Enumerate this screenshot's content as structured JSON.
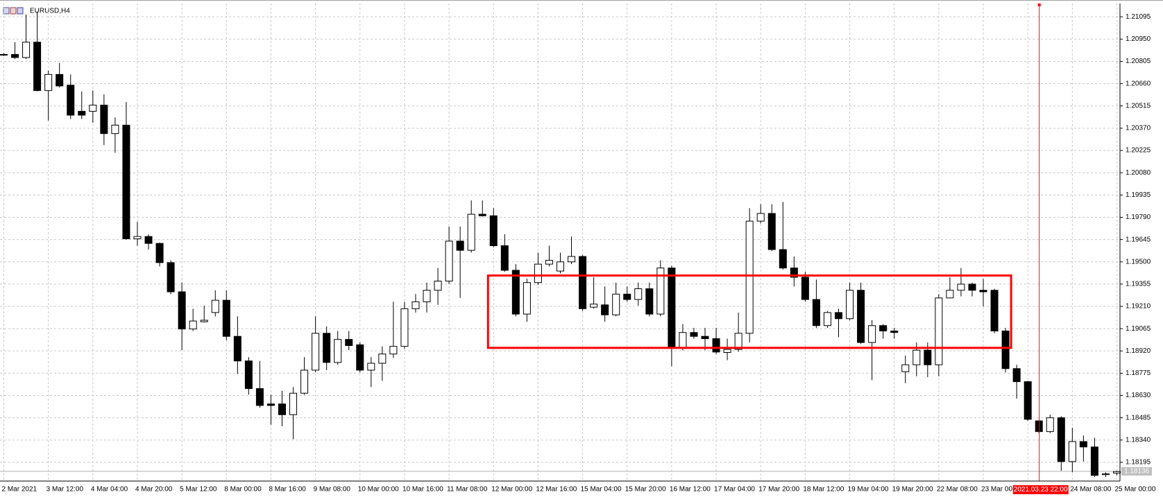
{
  "chart_data": {
    "type": "candlestick",
    "title": "EURUSD,H4",
    "categories": [
      "2 Mar 2021",
      null,
      null,
      null,
      "3 Mar 12:00",
      null,
      null,
      null,
      "4 Mar 04:00",
      null,
      null,
      null,
      "4 Mar 20:00",
      null,
      null,
      null,
      "5 Mar 12:00",
      null,
      null,
      null,
      "8 Mar 00:00",
      null,
      null,
      null,
      "8 Mar 16:00",
      null,
      null,
      null,
      "9 Mar 08:00",
      null,
      null,
      null,
      "10 Mar 00:00",
      null,
      null,
      null,
      "10 Mar 16:00",
      null,
      null,
      null,
      "11 Mar 08:00",
      null,
      null,
      null,
      "12 Mar 00:00",
      null,
      null,
      null,
      "12 Mar 16:00",
      null,
      null,
      null,
      "15 Mar 04:00",
      null,
      null,
      null,
      "15 Mar 20:00",
      null,
      null,
      null,
      "16 Mar 12:00",
      null,
      null,
      null,
      "17 Mar 04:00",
      null,
      null,
      null,
      "17 Mar 20:00",
      null,
      null,
      null,
      "18 Mar 12:00",
      null,
      null,
      null,
      "19 Mar 04:00",
      null,
      null,
      null,
      "19 Mar 20:00",
      null,
      null,
      null,
      "22 Mar 08:00",
      null,
      null,
      null,
      "23 Mar 00:00",
      null,
      null,
      null,
      null,
      null,
      null,
      null,
      "24 Mar 08:00",
      null,
      null,
      null,
      "25 Mar 00:00"
    ],
    "open": [
      1.2085,
      1.2085,
      1.2083,
      1.2093,
      1.20615,
      1.2072,
      1.2065,
      1.2048,
      1.2048,
      1.2052,
      1.20335,
      1.2039,
      1.1965,
      1.19665,
      1.1962,
      1.19495,
      1.19305,
      1.19063,
      1.1911,
      1.1917,
      1.1925,
      1.19015,
      1.18855,
      1.18675,
      1.18575,
      1.18575,
      1.18505,
      1.18645,
      1.18795,
      1.19035,
      1.18845,
      1.18995,
      1.1896,
      1.18795,
      1.1884,
      1.189,
      1.1895,
      1.19195,
      1.1924,
      1.19315,
      1.19375,
      1.19635,
      1.19575,
      1.1981,
      1.198,
      1.19605,
      1.19445,
      1.1916,
      1.19365,
      1.19485,
      1.1944,
      1.195,
      1.19535,
      1.19205,
      1.1922,
      1.19155,
      1.1929,
      1.19255,
      1.19325,
      1.1916,
      1.1946,
      1.1894,
      1.1904,
      1.19015,
      1.19,
      1.1891,
      1.1893,
      1.19035,
      1.19765,
      1.19815,
      1.1958,
      1.1946,
      1.194,
      1.19255,
      1.19085,
      1.1917,
      1.1913,
      1.19315,
      1.18975,
      1.19085,
      1.1905,
      1.18785,
      1.1883,
      1.18925,
      1.1883,
      1.19265,
      1.19315,
      1.19355,
      1.19315,
      1.19315,
      1.1905,
      1.18805,
      1.1872,
      1.18465,
      1.18395,
      1.18485,
      1.182,
      1.1833,
      1.18295,
      1.18115,
      1.18125
    ],
    "high": [
      1.2086,
      1.2093,
      1.2111,
      1.2113,
      1.20745,
      1.20795,
      1.2072,
      1.2061,
      1.20615,
      1.2059,
      1.2044,
      1.2054,
      1.1976,
      1.1968,
      1.19625,
      1.1951,
      1.19365,
      1.19195,
      1.19215,
      1.19315,
      1.19315,
      1.19145,
      1.1888,
      1.18855,
      1.18635,
      1.1866,
      1.18685,
      1.1888,
      1.19145,
      1.1908,
      1.1905,
      1.1905,
      1.18975,
      1.1888,
      1.1895,
      1.1924,
      1.1924,
      1.1929,
      1.19365,
      1.1946,
      1.1973,
      1.1973,
      1.199,
      1.199,
      1.1985,
      1.1968,
      1.19485,
      1.1939,
      1.1956,
      1.19605,
      1.1956,
      1.19665,
      1.19545,
      1.194,
      1.1934,
      1.19365,
      1.1934,
      1.19365,
      1.19365,
      1.1951,
      1.19475,
      1.19095,
      1.1907,
      1.1907,
      1.1907,
      1.19,
      1.1917,
      1.1985,
      1.19875,
      1.19875,
      1.1989,
      1.19535,
      1.19435,
      1.19385,
      1.1918,
      1.19195,
      1.19365,
      1.19365,
      1.1912,
      1.19095,
      1.1907,
      1.1889,
      1.18975,
      1.18975,
      1.1929,
      1.194,
      1.1946,
      1.19365,
      1.1939,
      1.19325,
      1.1907,
      1.1883,
      1.18725,
      1.18465,
      1.18505,
      1.18495,
      1.1842,
      1.1837,
      1.18355,
      1.1813,
      1.1814
    ],
    "low": [
      1.2084,
      1.2082,
      1.2082,
      1.2061,
      1.2042,
      1.20635,
      1.2043,
      1.2043,
      1.20405,
      1.2026,
      1.2021,
      1.19645,
      1.19605,
      1.1958,
      1.1947,
      1.1929,
      1.18925,
      1.1905,
      1.19105,
      1.19145,
      1.1899,
      1.1877,
      1.18635,
      1.1855,
      1.1844,
      1.1843,
      1.18345,
      1.18635,
      1.1878,
      1.18795,
      1.1883,
      1.18925,
      1.1878,
      1.18685,
      1.18725,
      1.18875,
      1.18935,
      1.1917,
      1.1917,
      1.1922,
      1.19355,
      1.19265,
      1.1956,
      1.19795,
      1.19595,
      1.19435,
      1.19145,
      1.1911,
      1.1935,
      1.1947,
      1.19425,
      1.19485,
      1.1918,
      1.19195,
      1.1911,
      1.19145,
      1.1924,
      1.19215,
      1.19145,
      1.19145,
      1.1882,
      1.18925,
      1.19,
      1.18925,
      1.189,
      1.1886,
      1.18915,
      1.18975,
      1.1975,
      1.1957,
      1.1945,
      1.1934,
      1.1924,
      1.1907,
      1.1907,
      1.1901,
      1.1912,
      1.18965,
      1.1873,
      1.19,
      1.19,
      1.1871,
      1.18755,
      1.1875,
      1.18755,
      1.19265,
      1.19275,
      1.19275,
      1.1921,
      1.19035,
      1.1878,
      1.1861,
      1.18465,
      1.18385,
      1.18385,
      1.1814,
      1.1813,
      1.182,
      1.181,
      1.181,
      1.1811
    ],
    "close": [
      1.2085,
      1.2083,
      1.2093,
      1.20615,
      1.2072,
      1.20645,
      1.20455,
      1.20455,
      1.2052,
      1.20335,
      1.2039,
      1.1965,
      1.19665,
      1.1962,
      1.19495,
      1.19305,
      1.19063,
      1.19115,
      1.1912,
      1.1925,
      1.19015,
      1.18855,
      1.18675,
      1.18565,
      1.18565,
      1.18505,
      1.18645,
      1.18795,
      1.19035,
      1.18845,
      1.18995,
      1.18955,
      1.18795,
      1.1884,
      1.189,
      1.1895,
      1.19195,
      1.1924,
      1.19315,
      1.19375,
      1.19635,
      1.19575,
      1.1981,
      1.198,
      1.19605,
      1.19445,
      1.1916,
      1.19365,
      1.19485,
      1.1951,
      1.195,
      1.19535,
      1.19195,
      1.19225,
      1.19155,
      1.1929,
      1.19255,
      1.19325,
      1.1916,
      1.1946,
      1.1894,
      1.1904,
      1.19015,
      1.19,
      1.18913,
      1.1893,
      1.19035,
      1.19765,
      1.19815,
      1.1958,
      1.1946,
      1.194,
      1.19255,
      1.19085,
      1.1917,
      1.1913,
      1.19315,
      1.18975,
      1.19085,
      1.1905,
      1.1904,
      1.1883,
      1.18925,
      1.1883,
      1.19265,
      1.19315,
      1.19355,
      1.19315,
      1.19305,
      1.1905,
      1.18805,
      1.1872,
      1.18475,
      1.18395,
      1.18485,
      1.182,
      1.1833,
      1.18295,
      1.1811,
      1.1812,
      1.18135
    ],
    "ylim": [
      1.18073,
      1.21182
    ],
    "yticks": [
      1.21095,
      {
        "value": 1.2095,
        "label": "1.20950"
      },
      1.20805,
      {
        "value": 1.2066,
        "label": "1.20660"
      },
      1.20515,
      {
        "value": 1.2037,
        "label": "1.20370"
      },
      1.20225,
      {
        "value": 1.2008,
        "label": "1.20080"
      },
      1.19935,
      {
        "value": 1.1979,
        "label": "1.19790"
      },
      1.19645,
      {
        "value": 1.195,
        "label": "1.19500"
      },
      1.19355,
      {
        "value": 1.1921,
        "label": "1.19210"
      },
      1.19065,
      {
        "value": 1.1892,
        "label": "1.18920"
      },
      1.18775,
      {
        "value": 1.1863,
        "label": "1.18630"
      },
      1.18485,
      {
        "value": 1.1834,
        "label": "1.18340"
      },
      1.18195
    ],
    "grid": true,
    "last_price": 1.18136,
    "rectangle": {
      "top": 1.19411,
      "bottom": 1.1894,
      "color": "#ff0000"
    },
    "vline": {
      "label": "2021.03.23 22:00",
      "color": "#ff0000"
    }
  }
}
